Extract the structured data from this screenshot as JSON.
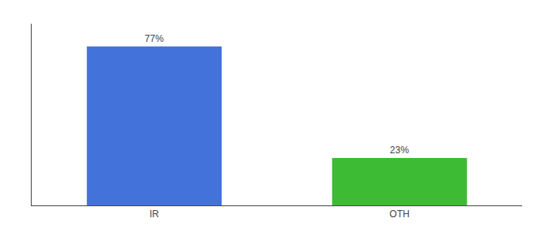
{
  "chart_data": {
    "type": "bar",
    "categories": [
      "IR",
      "OTH"
    ],
    "values": [
      77,
      23
    ],
    "value_labels": [
      "77%",
      "23%"
    ],
    "colors": [
      "#4472db",
      "#3dbb35"
    ],
    "ylim": [
      0,
      88
    ],
    "yticks": [],
    "grid": false,
    "data_labels": true,
    "tick_labels": "x"
  }
}
